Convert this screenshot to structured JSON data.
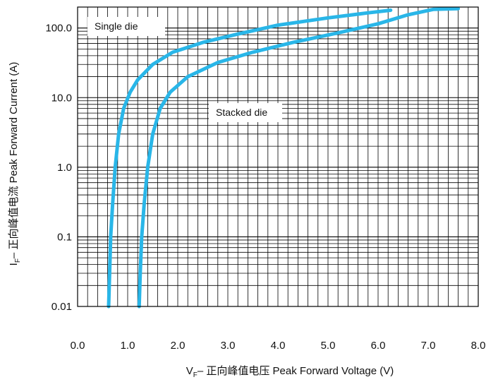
{
  "chart_data": {
    "type": "line",
    "xlabel_prefix": "V",
    "xlabel_sub": "F",
    "xlabel_rest": "– 正向峰值电压 Peak Forward Voltage (V)",
    "ylabel_prefix": "I",
    "ylabel_sub": "F",
    "ylabel_rest": "– 正向峰值电流 Peak Forward Current (A)",
    "xlim": [
      0.0,
      8.0
    ],
    "ylim": [
      0.01,
      200
    ],
    "y_scale": "log",
    "x_ticks": [
      "0.0",
      "1.0",
      "2.0",
      "3.0",
      "4.0",
      "5.0",
      "6.0",
      "7.0",
      "8.0"
    ],
    "x_tick_values": [
      0,
      1,
      2,
      3,
      4,
      5,
      6,
      7,
      8
    ],
    "y_ticks": [
      "0.01",
      "0.1",
      "1.0",
      "10.0",
      "100.0"
    ],
    "y_tick_values": [
      0.01,
      0.1,
      1,
      10,
      100
    ],
    "grid": true,
    "line_color": "#29b6e8",
    "series": [
      {
        "name": "Single die",
        "points": [
          [
            0.62,
            0.01
          ],
          [
            0.64,
            0.03
          ],
          [
            0.66,
            0.1
          ],
          [
            0.7,
            0.3
          ],
          [
            0.75,
            1.0
          ],
          [
            0.82,
            3.0
          ],
          [
            0.92,
            7.0
          ],
          [
            1.05,
            12.0
          ],
          [
            1.2,
            18.0
          ],
          [
            1.5,
            30.0
          ],
          [
            1.9,
            45.0
          ],
          [
            2.5,
            62.0
          ],
          [
            3.2,
            82.0
          ],
          [
            4.0,
            110.0
          ],
          [
            5.0,
            140.0
          ],
          [
            5.8,
            165.0
          ],
          [
            6.25,
            180.0
          ]
        ]
      },
      {
        "name": "Stacked die",
        "points": [
          [
            1.23,
            0.01
          ],
          [
            1.25,
            0.03
          ],
          [
            1.28,
            0.1
          ],
          [
            1.33,
            0.3
          ],
          [
            1.4,
            1.0
          ],
          [
            1.5,
            3.0
          ],
          [
            1.65,
            7.0
          ],
          [
            1.85,
            12.0
          ],
          [
            2.2,
            20.0
          ],
          [
            2.8,
            32.0
          ],
          [
            3.5,
            45.0
          ],
          [
            4.3,
            62.0
          ],
          [
            5.2,
            85.0
          ],
          [
            6.0,
            115.0
          ],
          [
            6.6,
            155.0
          ],
          [
            7.1,
            185.0
          ],
          [
            7.6,
            190.0
          ]
        ]
      }
    ],
    "annotations": [
      {
        "text": "Single die",
        "series": "Single die"
      },
      {
        "text": "Stacked die",
        "series": "Stacked die"
      }
    ]
  }
}
